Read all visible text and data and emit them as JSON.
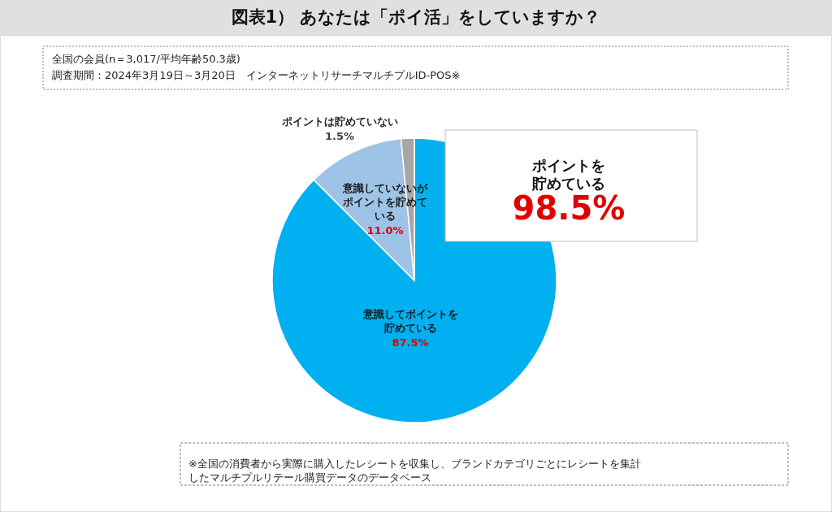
{
  "chart_data": {
    "type": "pie",
    "title": "図表1） あなたは「ポイ活」をしていますか？",
    "categories": [
      "意識してポイントを貯めている",
      "意識していないがポイントを貯めている",
      "ポイントは貯めていない"
    ],
    "values": [
      87.5,
      11.0,
      1.5
    ],
    "colors": [
      "#00b0f0",
      "#9dc3e6",
      "#a6a6a6"
    ],
    "value_labels": [
      "87.5%",
      "11.0%",
      "1.5%"
    ],
    "annotations": [
      "全国の会員(n＝3,017/平均年齢50.3歳)",
      "調査期間：2024年3月19日～3月20日　インターネットリサーチマルチプルID-POS※",
      "ポイントを貯めている",
      "98.5%",
      "※全国の消費者から実際に購入したレシートを収集し、ブランドカテゴリごとにレシートを集計したマルチプルリテール購買データのデータベース"
    ]
  }
}
